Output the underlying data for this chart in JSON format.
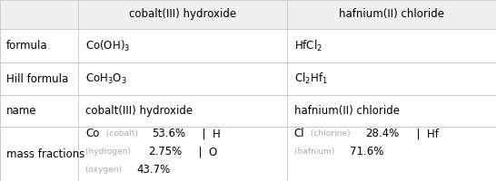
{
  "col_headers": [
    "cobalt(III) hydroxide",
    "hafnium(II) chloride"
  ],
  "row_labels": [
    "formula",
    "Hill formula",
    "name",
    "mass fractions"
  ],
  "c0": 0.0,
  "c1": 0.158,
  "c2": 0.578,
  "c3": 1.0,
  "rows": [
    [
      0.84,
      1.0
    ],
    [
      0.655,
      0.84
    ],
    [
      0.475,
      0.655
    ],
    [
      0.3,
      0.475
    ],
    [
      0.0,
      0.3
    ]
  ],
  "header_bg": "#efefef",
  "cell_bg": "#ffffff",
  "border_color": "#cccccc",
  "text_color": "#000000",
  "small_text_color": "#aaaaaa",
  "font_size": 8.5,
  "small_font_size": 6.5,
  "mass_cobalt_line1": [
    [
      "Co",
      "normal",
      "#000000",
      8.5
    ],
    [
      " (cobalt) ",
      "normal",
      "#aaaaaa",
      6.5
    ],
    [
      "53.6%",
      "normal",
      "#000000",
      8.5
    ],
    [
      "  |  H",
      "normal",
      "#000000",
      8.5
    ]
  ],
  "mass_cobalt_line2": [
    [
      "(hydrogen) ",
      "normal",
      "#aaaaaa",
      6.5
    ],
    [
      "2.75%",
      "normal",
      "#000000",
      8.5
    ],
    [
      "  |  O",
      "normal",
      "#000000",
      8.5
    ]
  ],
  "mass_cobalt_line3": [
    [
      "(oxygen) ",
      "normal",
      "#aaaaaa",
      6.5
    ],
    [
      "43.7%",
      "normal",
      "#000000",
      8.5
    ]
  ],
  "mass_hafnium_line1": [
    [
      "Cl",
      "normal",
      "#000000",
      8.5
    ],
    [
      " (chlorine) ",
      "normal",
      "#aaaaaa",
      6.5
    ],
    [
      "28.4%",
      "normal",
      "#000000",
      8.5
    ],
    [
      "  |  Hf",
      "normal",
      "#000000",
      8.5
    ]
  ],
  "mass_hafnium_line2": [
    [
      "(hafnium) ",
      "normal",
      "#aaaaaa",
      6.5
    ],
    [
      "71.6%",
      "normal",
      "#000000",
      8.5
    ]
  ]
}
